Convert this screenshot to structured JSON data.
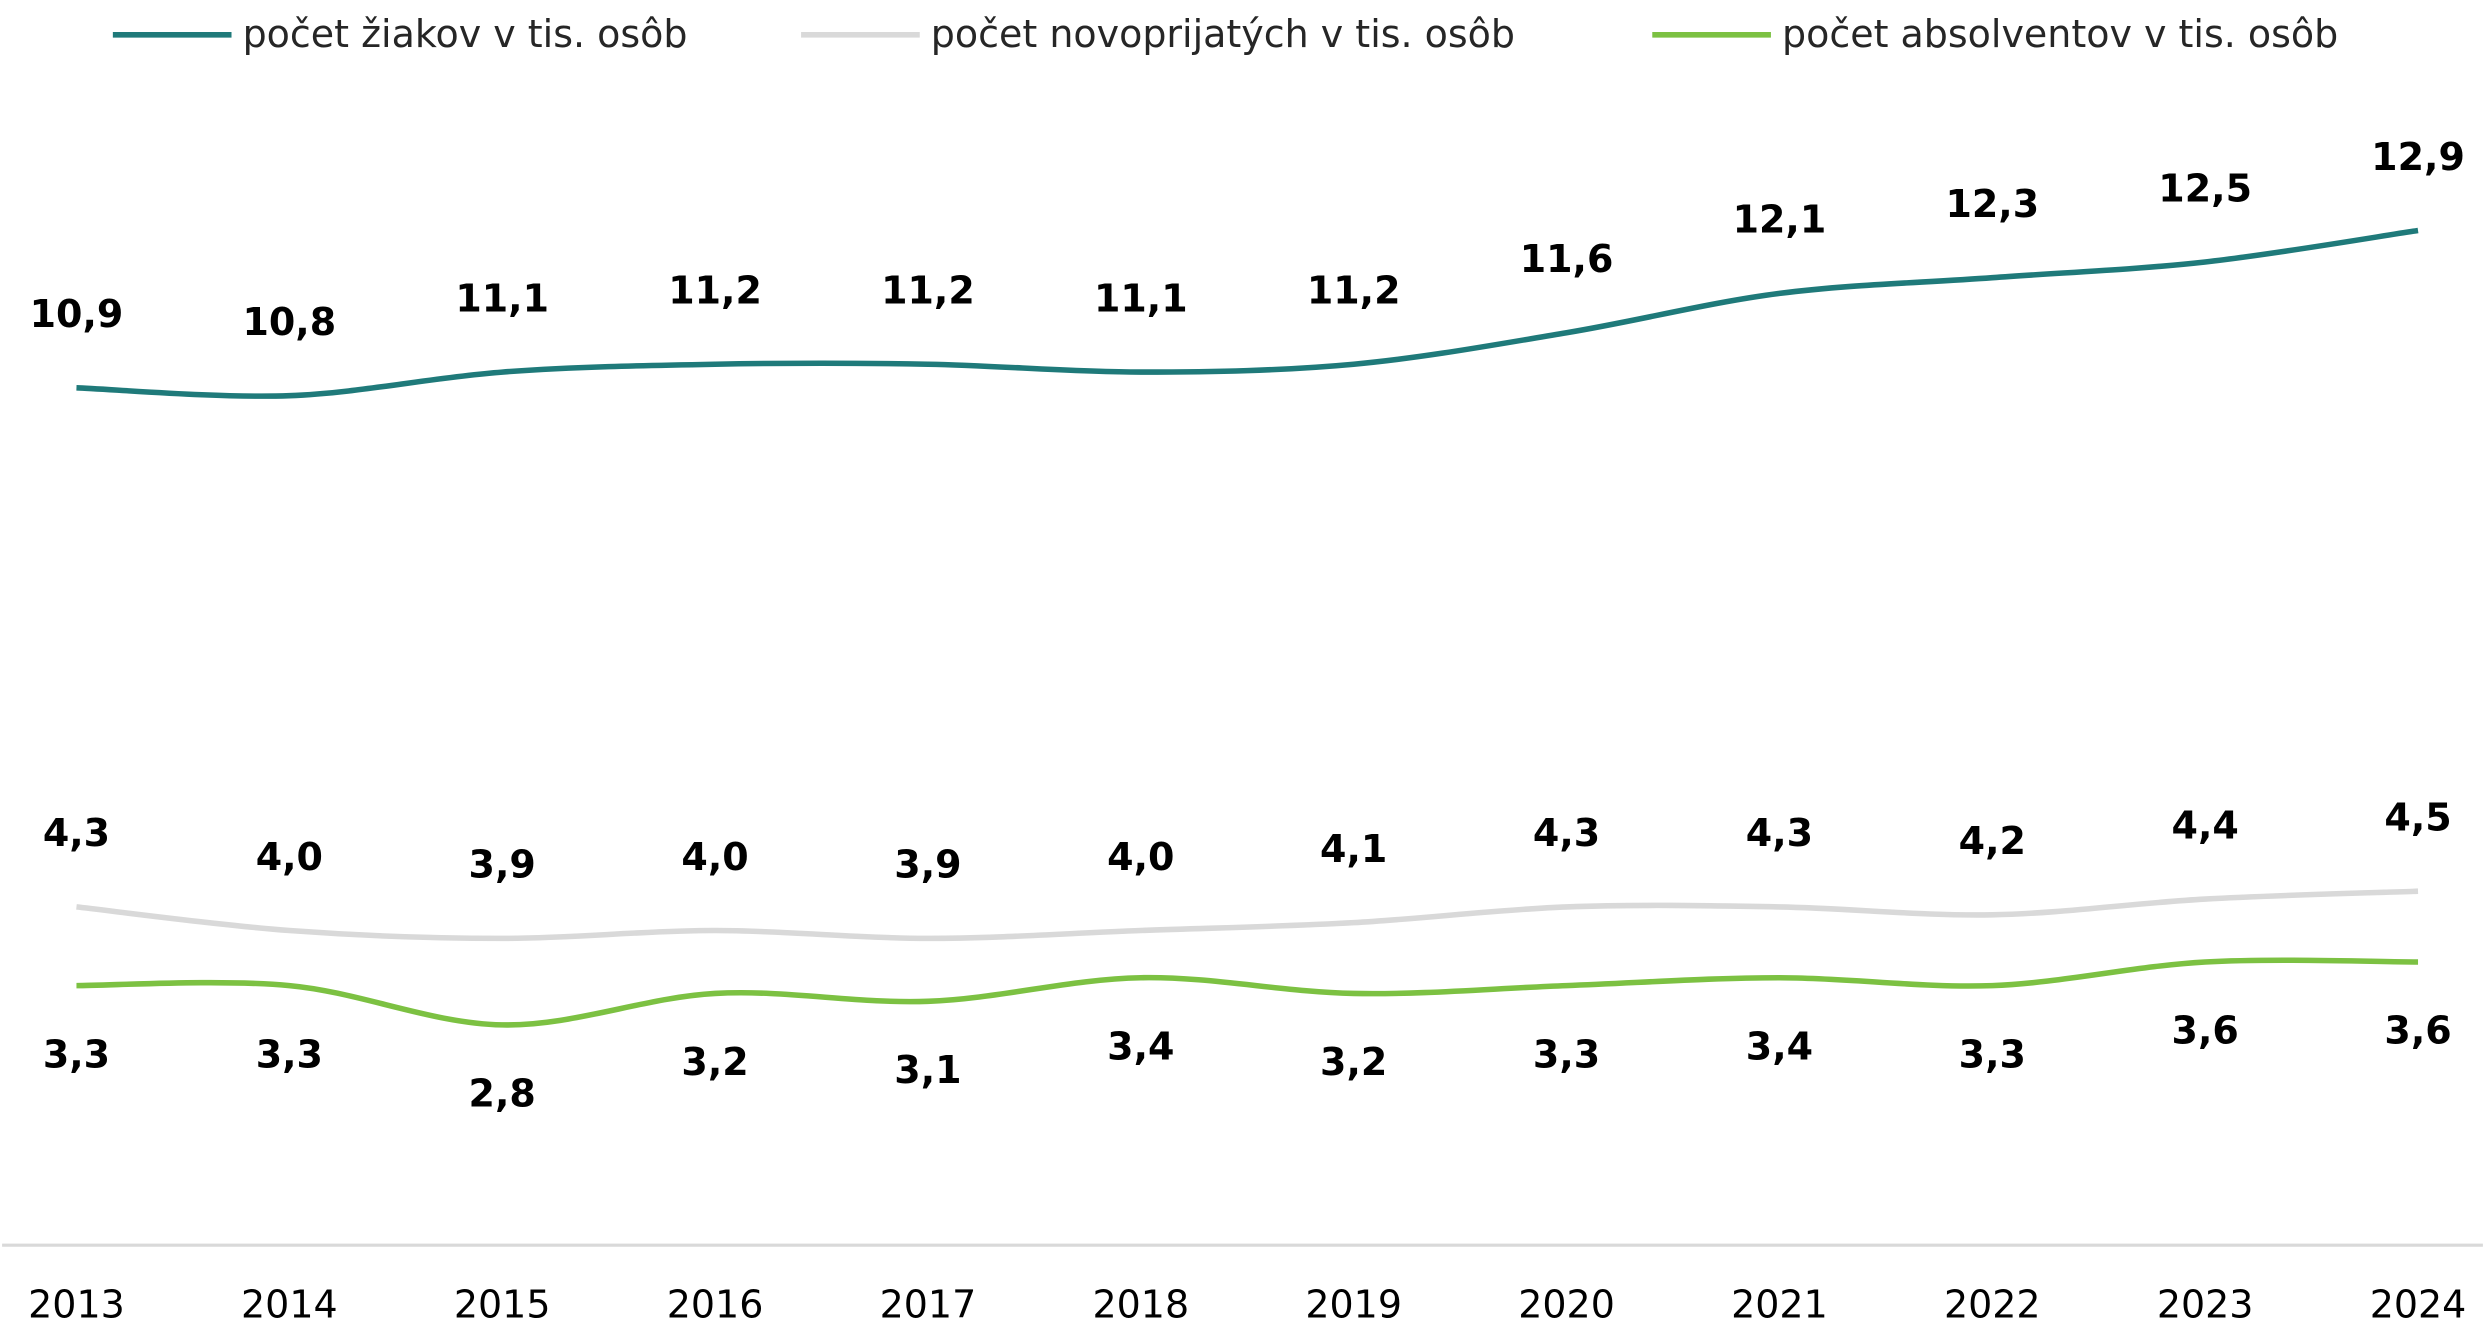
{
  "chart_data": {
    "type": "line",
    "categories": [
      "2013",
      "2014",
      "2015",
      "2016",
      "2017",
      "2018",
      "2019",
      "2020",
      "2021",
      "2022",
      "2023",
      "2024"
    ],
    "ylim": [
      0,
      14
    ],
    "series": [
      {
        "name": "počet žiakov v tis. osôb",
        "color": "#1f7a7a",
        "values": [
          10.9,
          10.8,
          11.1,
          11.2,
          11.2,
          11.1,
          11.2,
          11.6,
          12.1,
          12.3,
          12.5,
          12.9
        ],
        "value_labels": [
          "10,9",
          "10,8",
          "11,1",
          "11,2",
          "11,2",
          "11,1",
          "11,2",
          "11,6",
          "12,1",
          "12,3",
          "12,5",
          "12,9"
        ]
      },
      {
        "name": "počet novoprijatých v tis. osôb",
        "color": "#d9d9d9",
        "values": [
          4.3,
          4.0,
          3.9,
          4.0,
          3.9,
          4.0,
          4.1,
          4.3,
          4.3,
          4.2,
          4.4,
          4.5
        ],
        "value_labels": [
          "4,3",
          "4,0",
          "3,9",
          "4,0",
          "3,9",
          "4,0",
          "4,1",
          "4,3",
          "4,3",
          "4,2",
          "4,4",
          "4,5"
        ]
      },
      {
        "name": "počet absolventov v tis. osôb",
        "color": "#7cc142",
        "values": [
          3.3,
          3.3,
          2.8,
          3.2,
          3.1,
          3.4,
          3.2,
          3.3,
          3.4,
          3.3,
          3.6,
          3.6
        ],
        "value_labels": [
          "3,3",
          "3,3",
          "2,8",
          "3,2",
          "3,1",
          "3,4",
          "3,2",
          "3,3",
          "3,4",
          "3,3",
          "3,6",
          "3,6"
        ]
      }
    ]
  }
}
